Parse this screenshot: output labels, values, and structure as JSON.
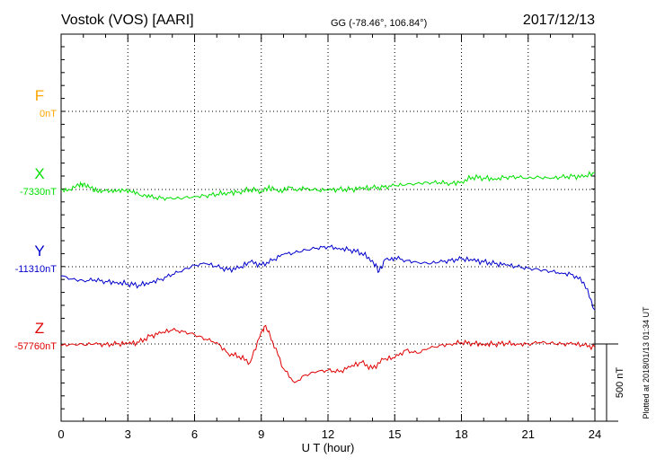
{
  "header": {
    "station": "Vostok (VOS)  [AARI]",
    "coords": "GG (-78.46°, 106.84°)",
    "date": "2017/12/13"
  },
  "footer": {
    "plotted_note": "Plotted at 2018/01/13 01:34 UT"
  },
  "chart_data": {
    "type": "line",
    "title": "Vostok (VOS)  [AARI]",
    "xlabel": "U T (hour)",
    "ylabel": "",
    "xlim": [
      0,
      24
    ],
    "xticks": [
      0,
      3,
      6,
      9,
      12,
      15,
      18,
      21,
      24
    ],
    "grid": true,
    "scale_bar_nT": 500,
    "scale_bar_label": "500 nT",
    "series": [
      {
        "name": "F",
        "baseline_label": "0nT",
        "color": "#ffa500",
        "x": [],
        "values": []
      },
      {
        "name": "X",
        "baseline_label": "-7330nT",
        "color": "#00e000",
        "x": [
          0,
          0.4,
          0.8,
          1.0,
          1.3,
          1.6,
          2.0,
          2.4,
          2.8,
          3.2,
          3.6,
          4.0,
          4.5,
          5.0,
          5.5,
          6.0,
          6.5,
          7.0,
          7.5,
          8.0,
          8.5,
          9.0,
          9.3,
          9.6,
          10.0,
          10.3,
          10.6,
          11.0,
          11.5,
          12.0,
          12.5,
          13.0,
          13.5,
          14.0,
          14.5,
          15.0,
          15.5,
          16.0,
          16.5,
          17.0,
          17.5,
          18.0,
          18.5,
          19.0,
          19.5,
          20.0,
          20.5,
          21.0,
          21.5,
          22.0,
          22.5,
          23.0,
          23.5,
          24.0
        ],
        "values": [
          0,
          0,
          25,
          35,
          10,
          -10,
          -5,
          0,
          -5,
          -20,
          -40,
          -50,
          -55,
          -60,
          -55,
          -45,
          -40,
          -30,
          -20,
          -15,
          0,
          -10,
          10,
          0,
          -5,
          15,
          -10,
          5,
          -5,
          -5,
          0,
          0,
          5,
          10,
          15,
          25,
          30,
          40,
          45,
          45,
          40,
          50,
          80,
          75,
          70,
          80,
          80,
          75,
          80,
          70,
          80,
          85,
          80,
          110
        ]
      },
      {
        "name": "Y",
        "baseline_label": "-11310nT",
        "color": "#0000cc",
        "x": [
          0,
          0.5,
          1.0,
          1.5,
          2.0,
          2.5,
          3.0,
          3.5,
          4.0,
          4.5,
          5.0,
          5.5,
          6.0,
          6.5,
          7.0,
          7.5,
          8.0,
          8.5,
          9.0,
          9.5,
          10.0,
          10.5,
          11.0,
          11.5,
          12.0,
          12.5,
          13.0,
          13.5,
          14.0,
          14.3,
          14.6,
          15.0,
          15.5,
          16.0,
          16.5,
          17.0,
          17.5,
          18.0,
          18.5,
          19.0,
          19.5,
          20.0,
          20.5,
          21.0,
          21.5,
          22.0,
          22.5,
          23.0,
          23.5,
          24.0
        ],
        "values": [
          -60,
          -80,
          -90,
          -85,
          -95,
          -100,
          -110,
          -120,
          -100,
          -80,
          -50,
          -20,
          10,
          20,
          0,
          -20,
          -10,
          30,
          10,
          40,
          80,
          90,
          110,
          120,
          130,
          120,
          110,
          90,
          40,
          -30,
          50,
          60,
          40,
          30,
          20,
          30,
          40,
          50,
          40,
          30,
          20,
          10,
          0,
          -10,
          -20,
          -30,
          -40,
          -50,
          -100,
          -280
        ]
      },
      {
        "name": "Z",
        "baseline_label": "-57760nT",
        "color": "#e00000",
        "x": [
          0,
          0.5,
          1.0,
          1.5,
          2.0,
          2.5,
          3.0,
          3.5,
          4.0,
          4.5,
          5.0,
          5.5,
          6.0,
          6.5,
          7.0,
          7.5,
          8.0,
          8.5,
          9.0,
          9.2,
          9.5,
          10.0,
          10.5,
          11.0,
          11.5,
          12.0,
          12.5,
          13.0,
          13.5,
          14.0,
          14.5,
          15.0,
          15.5,
          16.0,
          16.5,
          17.0,
          17.5,
          18.0,
          18.5,
          19.0,
          19.5,
          20.0,
          20.5,
          21.0,
          21.5,
          22.0,
          22.5,
          23.0,
          23.5,
          24.0
        ],
        "values": [
          -10,
          0,
          -5,
          0,
          -5,
          0,
          0,
          10,
          50,
          70,
          90,
          80,
          60,
          30,
          10,
          -60,
          -80,
          -120,
          80,
          120,
          20,
          -160,
          -250,
          -200,
          -180,
          -170,
          -180,
          -150,
          -120,
          -160,
          -100,
          -90,
          -40,
          -60,
          -30,
          -10,
          0,
          10,
          5,
          0,
          0,
          5,
          0,
          0,
          10,
          5,
          0,
          0,
          -10,
          -20
        ]
      }
    ]
  }
}
